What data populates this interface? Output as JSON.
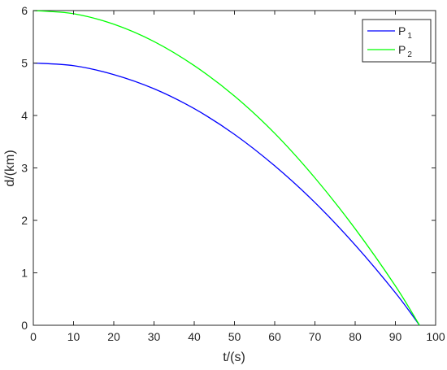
{
  "chart_data": {
    "type": "line",
    "xlabel": "t/(s)",
    "ylabel": "d/(km)",
    "xlim": [
      0,
      100
    ],
    "ylim": [
      0,
      6
    ],
    "xticks": [
      "0",
      "10",
      "20",
      "30",
      "40",
      "50",
      "60",
      "70",
      "80",
      "90",
      "100"
    ],
    "yticks": [
      "0",
      "1",
      "2",
      "3",
      "4",
      "5",
      "6"
    ],
    "grid": false,
    "legend_position": "top-right",
    "series": [
      {
        "name": "P",
        "subscript": "1",
        "color": "#0000ff",
        "x": [
          0,
          10,
          20,
          30,
          40,
          50,
          60,
          70,
          80,
          90,
          96
        ],
        "y": [
          5.0,
          4.95,
          4.78,
          4.51,
          4.13,
          3.64,
          3.04,
          2.34,
          1.53,
          0.62,
          0.0
        ]
      },
      {
        "name": "P",
        "subscript": "2",
        "color": "#00ff00",
        "x": [
          0,
          10,
          20,
          30,
          40,
          50,
          60,
          70,
          80,
          90,
          96
        ],
        "y": [
          6.0,
          5.94,
          5.74,
          5.41,
          4.95,
          4.37,
          3.66,
          2.81,
          1.84,
          0.75,
          0.0
        ]
      }
    ]
  }
}
